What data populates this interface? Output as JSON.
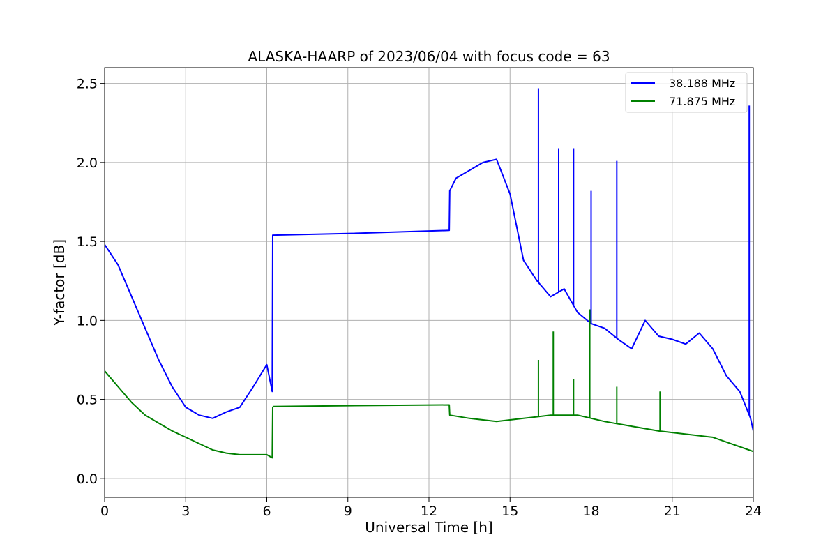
{
  "chart_data": {
    "type": "line",
    "title": "ALASKA-HAARP of 2023/06/04 with focus code = 63",
    "xlabel": "Universal Time [h]",
    "ylabel": "Y-factor [dB]",
    "xlim": [
      0,
      24
    ],
    "ylim": [
      -0.12,
      2.6
    ],
    "xticks": [
      0,
      3,
      6,
      9,
      12,
      15,
      18,
      21,
      24
    ],
    "yticks": [
      0.0,
      0.5,
      1.0,
      1.5,
      2.0,
      2.5
    ],
    "ytick_labels": [
      "0.0",
      "0.5",
      "1.0",
      "1.5",
      "2.0",
      "2.5"
    ],
    "grid": true,
    "legend_position": "top-right",
    "series": [
      {
        "name": "38.188 MHz",
        "color": "#0000ff",
        "x": [
          0,
          0.5,
          1,
          1.5,
          2,
          2.5,
          3,
          3.5,
          4,
          4.5,
          5,
          5.5,
          6,
          6.2,
          6.22,
          6.25,
          9,
          12.75,
          12.77,
          13,
          13.5,
          14,
          14.5,
          15,
          15.5,
          16,
          16.5,
          17,
          17.5,
          18,
          18.5,
          19,
          19.5,
          20,
          20.5,
          21,
          21.5,
          22,
          22.5,
          23,
          23.5,
          23.9,
          24
        ],
        "y": [
          1.48,
          1.35,
          1.15,
          0.95,
          0.75,
          0.58,
          0.45,
          0.4,
          0.38,
          0.42,
          0.45,
          0.58,
          0.72,
          0.55,
          1.54,
          1.54,
          1.55,
          1.57,
          1.82,
          1.9,
          1.95,
          2.0,
          2.02,
          1.8,
          1.38,
          1.25,
          1.15,
          1.2,
          1.05,
          0.98,
          0.95,
          0.88,
          0.82,
          1.0,
          0.9,
          0.88,
          0.85,
          0.92,
          0.82,
          0.65,
          0.55,
          0.38,
          0.3
        ],
        "spikes": [
          {
            "x": 16.05,
            "y": 2.47
          },
          {
            "x": 16.8,
            "y": 2.09
          },
          {
            "x": 17.35,
            "y": 2.09
          },
          {
            "x": 18.0,
            "y": 1.82
          },
          {
            "x": 18.95,
            "y": 2.01
          },
          {
            "x": 23.85,
            "y": 2.36
          }
        ]
      },
      {
        "name": "71.875 MHz",
        "color": "#008000",
        "x": [
          0,
          0.5,
          1,
          1.5,
          2,
          2.5,
          3,
          3.5,
          4,
          4.5,
          5,
          5.5,
          6,
          6.2,
          6.22,
          6.25,
          9,
          12.75,
          12.77,
          13.5,
          14.5,
          15.5,
          16.5,
          17.5,
          18.5,
          19.5,
          20.5,
          21.5,
          22.5,
          23.5,
          24
        ],
        "y": [
          0.68,
          0.58,
          0.48,
          0.4,
          0.35,
          0.3,
          0.26,
          0.22,
          0.18,
          0.16,
          0.15,
          0.15,
          0.15,
          0.13,
          0.45,
          0.455,
          0.46,
          0.465,
          0.4,
          0.38,
          0.36,
          0.38,
          0.4,
          0.4,
          0.36,
          0.33,
          0.3,
          0.28,
          0.26,
          0.2,
          0.17
        ],
        "spikes": [
          {
            "x": 16.05,
            "y": 0.75
          },
          {
            "x": 16.6,
            "y": 0.93
          },
          {
            "x": 17.35,
            "y": 0.63
          },
          {
            "x": 17.95,
            "y": 1.07
          },
          {
            "x": 18.95,
            "y": 0.58
          },
          {
            "x": 20.55,
            "y": 0.55
          }
        ]
      }
    ]
  }
}
